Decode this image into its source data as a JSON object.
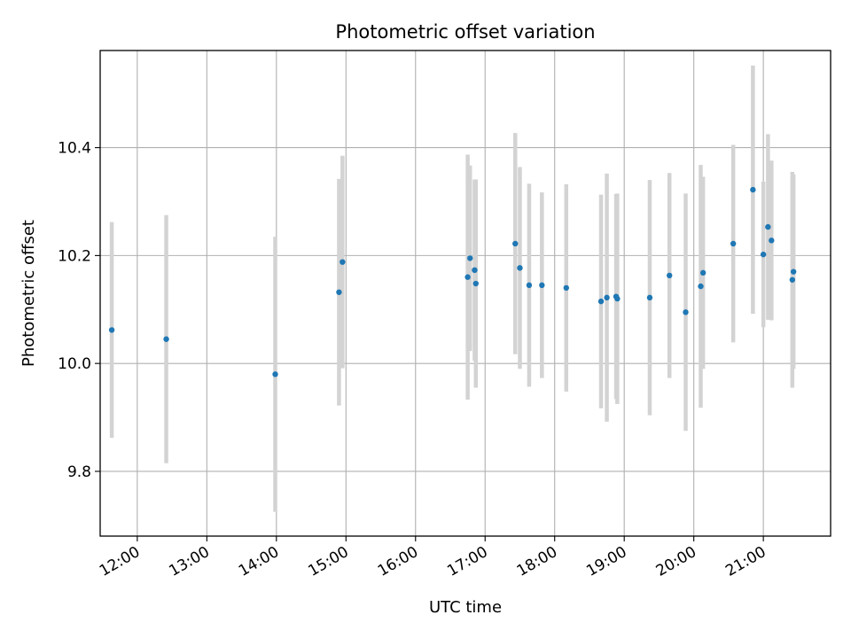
{
  "chart_data": {
    "type": "scatter",
    "title": "Photometric offset variation",
    "xlabel": "UTC time",
    "ylabel": "Photometric offset",
    "xlim": [
      "11:28",
      "21:58"
    ],
    "ylim": [
      9.68,
      10.58
    ],
    "x_ticks": [
      "12:00",
      "13:00",
      "14:00",
      "15:00",
      "16:00",
      "17:00",
      "18:00",
      "19:00",
      "20:00",
      "21:00"
    ],
    "y_ticks": [
      9.8,
      10.0,
      10.2,
      10.4
    ],
    "grid": true,
    "colors": {
      "point": "#1f77b4",
      "errorbar": "#d3d3d3",
      "grid": "#b0b0b0"
    },
    "points": [
      {
        "x": "11:38",
        "y": 10.062,
        "yerr": 0.2
      },
      {
        "x": "12:25",
        "y": 10.045,
        "yerr": 0.23
      },
      {
        "x": "13:59",
        "y": 9.98,
        "yerr": 0.255
      },
      {
        "x": "14:54",
        "y": 10.132,
        "yerr": 0.21
      },
      {
        "x": "14:57",
        "y": 10.188,
        "yerr": 0.197
      },
      {
        "x": "16:45",
        "y": 10.16,
        "yerr": 0.227
      },
      {
        "x": "16:47",
        "y": 10.195,
        "yerr": 0.172
      },
      {
        "x": "16:51",
        "y": 10.173,
        "yerr": 0.168
      },
      {
        "x": "16:52",
        "y": 10.148,
        "yerr": 0.193
      },
      {
        "x": "17:26",
        "y": 10.222,
        "yerr": 0.205
      },
      {
        "x": "17:30",
        "y": 10.177,
        "yerr": 0.187
      },
      {
        "x": "17:38",
        "y": 10.145,
        "yerr": 0.188
      },
      {
        "x": "17:49",
        "y": 10.145,
        "yerr": 0.172
      },
      {
        "x": "18:10",
        "y": 10.14,
        "yerr": 0.192
      },
      {
        "x": "18:40",
        "y": 10.115,
        "yerr": 0.198
      },
      {
        "x": "18:45",
        "y": 10.122,
        "yerr": 0.23
      },
      {
        "x": "18:53",
        "y": 10.124,
        "yerr": 0.19
      },
      {
        "x": "18:54",
        "y": 10.12,
        "yerr": 0.195
      },
      {
        "x": "19:22",
        "y": 10.122,
        "yerr": 0.218
      },
      {
        "x": "19:39",
        "y": 10.163,
        "yerr": 0.19
      },
      {
        "x": "19:53",
        "y": 10.095,
        "yerr": 0.22
      },
      {
        "x": "20:06",
        "y": 10.143,
        "yerr": 0.225
      },
      {
        "x": "20:08",
        "y": 10.168,
        "yerr": 0.178
      },
      {
        "x": "20:34",
        "y": 10.222,
        "yerr": 0.183
      },
      {
        "x": "20:51",
        "y": 10.322,
        "yerr": 0.23
      },
      {
        "x": "21:00",
        "y": 10.202,
        "yerr": 0.135
      },
      {
        "x": "21:04",
        "y": 10.253,
        "yerr": 0.172
      },
      {
        "x": "21:07",
        "y": 10.228,
        "yerr": 0.148
      },
      {
        "x": "21:25",
        "y": 10.155,
        "yerr": 0.2
      },
      {
        "x": "21:26",
        "y": 10.17,
        "yerr": 0.18
      }
    ]
  }
}
